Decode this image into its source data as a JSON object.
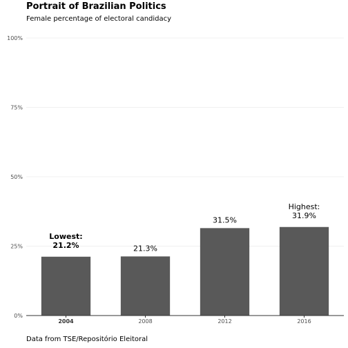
{
  "chart_data": {
    "type": "bar",
    "title": "Portrait of Brazilian Politics",
    "subtitle": "Female percentage of electoral candidacy",
    "caption": "Data from TSE/Repositório Eleitoral",
    "xlabel": "",
    "ylabel": "",
    "categories": [
      "2004",
      "2008",
      "2012",
      "2016"
    ],
    "values": [
      21.2,
      21.3,
      31.5,
      31.9
    ],
    "bold_categories": [
      "2004"
    ],
    "ylim": [
      0,
      100
    ],
    "yticks": [
      0,
      25,
      50,
      75,
      100
    ],
    "ytick_labels": [
      "0%",
      "25%",
      "50%",
      "75%",
      "100%"
    ],
    "bar_color": "#595959",
    "grid": true,
    "legend": "none",
    "data_labels": [
      {
        "line1": "Lowest:",
        "line2": "21.2%",
        "bold": true
      },
      {
        "line1": "",
        "line2": "21.3%",
        "bold": false
      },
      {
        "line1": "",
        "line2": "31.5%",
        "bold": false
      },
      {
        "line1": "Highest:",
        "line2": "31.9%",
        "bold": false
      }
    ]
  }
}
